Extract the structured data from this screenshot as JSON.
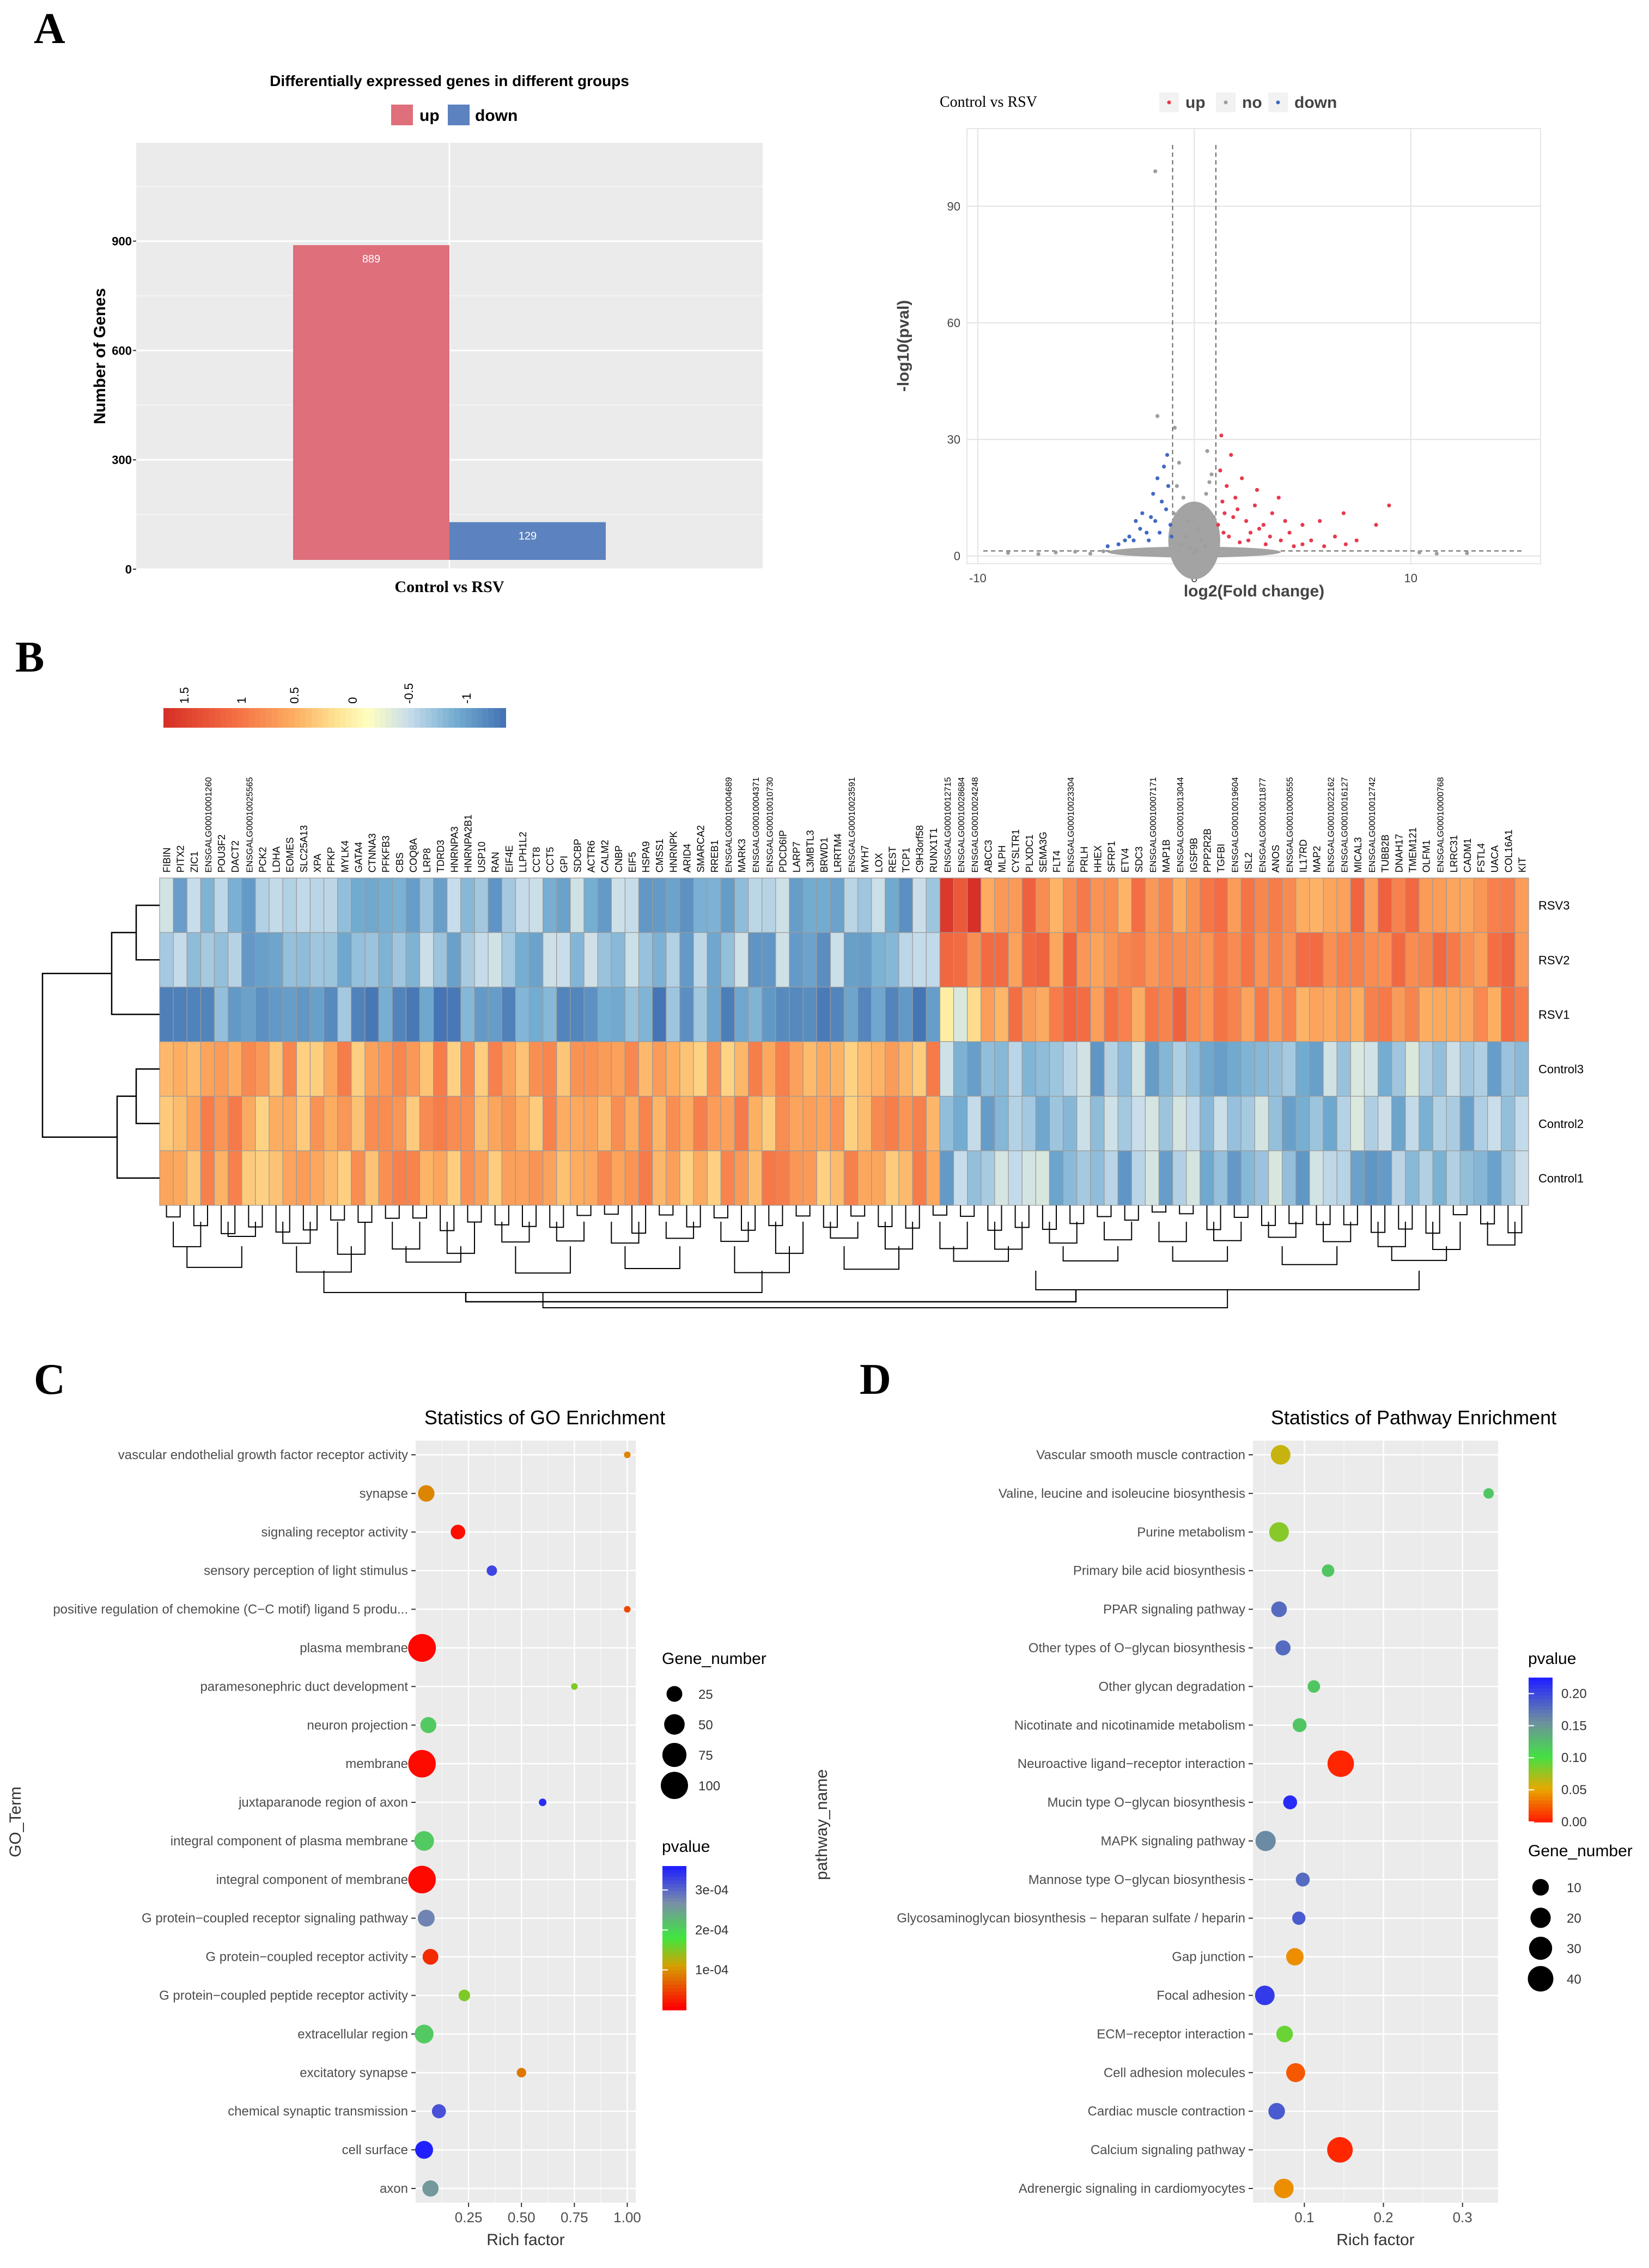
{
  "panels": {
    "a": "A",
    "b": "B",
    "c": "C",
    "d": "D"
  },
  "chart_data": [
    {
      "type": "bar",
      "panel": "A-left",
      "title": "Differentially expressed genes in different groups",
      "legend": [
        {
          "label": "up",
          "color": "#DF6F7B"
        },
        {
          "label": "down",
          "color": "#5C82BF"
        }
      ],
      "categories": [
        "Control vs RSV"
      ],
      "series": [
        {
          "name": "up",
          "values": [
            889
          ]
        },
        {
          "name": "down",
          "values": [
            129
          ]
        }
      ],
      "xlabel": "Control vs RSV",
      "ylabel": "Number of Genes",
      "yticks": [
        0,
        300,
        600,
        900
      ],
      "ylim": [
        0,
        1170
      ]
    },
    {
      "type": "scatter",
      "panel": "A-right",
      "title": "Control vs RSV",
      "legend": [
        {
          "label": "up",
          "color": "#E8394D"
        },
        {
          "label": "no",
          "color": "#9E9E9E"
        },
        {
          "label": "down",
          "color": "#4169C3"
        }
      ],
      "xlabel": "log2(Fold change)",
      "ylabel": "-log10(pval)",
      "xticks": [
        -10,
        0,
        10
      ],
      "yticks": [
        0,
        30,
        60,
        90
      ],
      "xlim": [
        -10.5,
        16
      ],
      "ylim": [
        -2,
        110
      ],
      "vlines": [
        -1,
        1
      ],
      "hline": 1.3,
      "points": {
        "up": [
          [
            1.2,
            22
          ],
          [
            1.5,
            18
          ],
          [
            2,
            12
          ],
          [
            2.4,
            9
          ],
          [
            3,
            7
          ],
          [
            3.5,
            5
          ],
          [
            4,
            4
          ],
          [
            5,
            3
          ],
          [
            6,
            2.5
          ],
          [
            7,
            3
          ],
          [
            1.3,
            14
          ],
          [
            1.8,
            10
          ],
          [
            2.6,
            6
          ],
          [
            3.2,
            8
          ],
          [
            4.4,
            6
          ],
          [
            5.4,
            4
          ],
          [
            6.5,
            5
          ],
          [
            7.5,
            4
          ],
          [
            8.4,
            8
          ],
          [
            9,
            13
          ],
          [
            1.1,
            8
          ],
          [
            1.4,
            11
          ],
          [
            1.9,
            15
          ],
          [
            2.2,
            20
          ],
          [
            2.8,
            13
          ],
          [
            3.6,
            11
          ],
          [
            4.2,
            9
          ],
          [
            5,
            8
          ],
          [
            1.6,
            5
          ],
          [
            2.1,
            3.5
          ],
          [
            2.5,
            4
          ],
          [
            3.3,
            3
          ],
          [
            4.6,
            2.5
          ],
          [
            1.25,
            31
          ],
          [
            1.7,
            26
          ],
          [
            3.9,
            15
          ],
          [
            5.8,
            9
          ],
          [
            6.9,
            11
          ],
          [
            2.9,
            17
          ],
          [
            1.35,
            6
          ]
        ],
        "down": [
          [
            -1.2,
            18
          ],
          [
            -1.5,
            14
          ],
          [
            -2,
            10
          ],
          [
            -2.5,
            7
          ],
          [
            -3,
            5
          ],
          [
            -3.5,
            3
          ],
          [
            -4,
            2.5
          ],
          [
            -1.3,
            12
          ],
          [
            -1.8,
            9
          ],
          [
            -2.2,
            6
          ],
          [
            -2.8,
            4
          ],
          [
            -1.1,
            8
          ],
          [
            -1.6,
            6
          ],
          [
            -2.4,
            11
          ],
          [
            -1.4,
            23
          ],
          [
            -1.9,
            16
          ],
          [
            -2.7,
            9
          ],
          [
            -3.2,
            4
          ],
          [
            -1.25,
            26
          ],
          [
            -2.1,
            4
          ],
          [
            -1.7,
            20
          ],
          [
            -1.05,
            5
          ]
        ],
        "no": [
          [
            -1.8,
            99
          ],
          [
            -1.7,
            36
          ],
          [
            -0.9,
            33
          ],
          [
            0.6,
            27
          ],
          [
            -0.7,
            24
          ],
          [
            0.8,
            21
          ],
          [
            -0.5,
            15
          ],
          [
            0.4,
            12
          ],
          [
            -0.3,
            9
          ],
          [
            0.2,
            7
          ],
          [
            -0.8,
            18
          ],
          [
            0.7,
            19
          ],
          [
            -8.6,
            0.8
          ],
          [
            -7.2,
            0.5
          ],
          [
            -6.4,
            0.9
          ],
          [
            -5.5,
            1.1
          ],
          [
            -4.8,
            0.6
          ],
          [
            -4.2,
            1.2
          ],
          [
            12.6,
            0.7
          ],
          [
            11.2,
            0.6
          ],
          [
            10.4,
            0.9
          ],
          [
            -0.4,
            5
          ],
          [
            0.3,
            4
          ],
          [
            -0.6,
            3
          ],
          [
            0.5,
            2.5
          ],
          [
            -0.2,
            2
          ],
          [
            0.1,
            1.5
          ],
          [
            0,
            1
          ],
          [
            0.9,
            10
          ],
          [
            -0.95,
            11
          ],
          [
            0.55,
            16
          ]
        ]
      }
    },
    {
      "type": "heatmap",
      "panel": "B",
      "legend_ticks": [
        "1.5",
        "1",
        "0.5",
        "0",
        "-0.5",
        "-1"
      ],
      "rows": [
        "RSV3",
        "RSV2",
        "RSV1",
        "Control3",
        "Control2",
        "Control1"
      ],
      "columns": [
        "FIBIN",
        "PITX2",
        "ZIC1",
        "ENSGALG00010001260",
        "POU3F2",
        "DACT2",
        "ENSGALG00010025565",
        "PCK2",
        "LDHA",
        "EOMES",
        "SLC25A13",
        "XPA",
        "PFKP",
        "MYLK4",
        "GATA4",
        "CTNNA3",
        "PFKFB3",
        "CBS",
        "COQ8A",
        "LRP8",
        "TDRD3",
        "HNRNPA3",
        "HNRNPA2B1",
        "USP10",
        "RAN",
        "EIF4E",
        "LLPH1L2",
        "CCT8",
        "CCT5",
        "GPI",
        "SDCBP",
        "ACTR6",
        "CALM2",
        "CNBP",
        "EIF5",
        "HSPA9",
        "CMSS1",
        "HNRNPK",
        "ARID4",
        "SMARCA2",
        "RREB1",
        "ENSGALG00010004689",
        "MARK3",
        "ENSGALG00010004371",
        "ENSGALG00010010730",
        "PDCD6IP",
        "LARP7",
        "L3MBTL3",
        "BRWD1",
        "LRRTM4",
        "ENSGALG00010023591",
        "MYH7",
        "LOX",
        "REST",
        "TCP1",
        "C9H3orf58",
        "RUNX1T1",
        "ENSGALG00010012715",
        "ENSGALG00010028684",
        "ENSGALG00010024248",
        "ABCC3",
        "MLPH",
        "CYSLTR1",
        "PLXDC1",
        "SEMA3G",
        "FLT4",
        "ENSGALG00010023304",
        "PRLH",
        "HHEX",
        "SFRP1",
        "ETV4",
        "SDC3",
        "ENSGALG00010007171",
        "MAP1B",
        "ENSGALG00010013044",
        "IGSF9B",
        "PPP2R2B",
        "TGFBI",
        "ENSGALG00010019604",
        "ISL2",
        "ENSGALG00010011877",
        "ANOS",
        "ENSGALG00010000555",
        "IL17RD",
        "MAP2",
        "ENSGALG00010022162",
        "ENSGALG00010016127",
        "MICAL3",
        "ENSGALG00010012742",
        "TUBB2B",
        "DNAH17",
        "TMEM121",
        "OLFM1",
        "ENSGALG00010000768",
        "LRRC31",
        "CADM1",
        "FSTL4",
        "UACA",
        "COL16A1",
        "KIT"
      ]
    },
    {
      "type": "scatter",
      "panel": "C",
      "title": "Statistics of GO Enrichment",
      "xlabel": "Rich factor",
      "ylabel": "GO_Term",
      "xticks": [
        "0.25",
        "0.50",
        "0.75",
        "1.00"
      ],
      "size_legend": {
        "title": "Gene_number",
        "values": [
          "25",
          "50",
          "75",
          "100"
        ]
      },
      "color_legend": {
        "title": "pvalue",
        "ticks": [
          "3e-04",
          "2e-04",
          "1e-04"
        ]
      },
      "terms": [
        {
          "label": "vascular endothelial growth factor receptor activity",
          "x": 1.0,
          "n": 1,
          "p": 9e-05
        },
        {
          "label": "synapse",
          "x": 0.05,
          "n": 28,
          "p": 9e-05
        },
        {
          "label": "signaling receptor activity",
          "x": 0.2,
          "n": 20,
          "p": 1e-05
        },
        {
          "label": "sensory perception of light stimulus",
          "x": 0.36,
          "n": 7,
          "p": 0.00033
        },
        {
          "label": "positive regulation of chemokine (C−C motif) ligand 5 produ...",
          "x": 1.0,
          "n": 1,
          "p": 5e-05
        },
        {
          "label": "plasma membrane",
          "x": 0.03,
          "n": 105,
          "p": 5e-06
        },
        {
          "label": "paramesonephric duct development",
          "x": 0.75,
          "n": 1,
          "p": 0.00015
        },
        {
          "label": "neuron projection",
          "x": 0.06,
          "n": 26,
          "p": 0.00021
        },
        {
          "label": "membrane",
          "x": 0.03,
          "n": 103,
          "p": 8e-06
        },
        {
          "label": "juxtaparanode region of axon",
          "x": 0.6,
          "n": 2,
          "p": 0.00035
        },
        {
          "label": "integral component of plasma membrane",
          "x": 0.04,
          "n": 45,
          "p": 0.00021
        },
        {
          "label": "integral component of membrane",
          "x": 0.03,
          "n": 103,
          "p": 6e-06
        },
        {
          "label": "G protein−coupled receptor signaling pathway",
          "x": 0.05,
          "n": 30,
          "p": 0.00028
        },
        {
          "label": "G protein−coupled receptor activity",
          "x": 0.07,
          "n": 25,
          "p": 3e-05
        },
        {
          "label": "G protein−coupled peptide receptor activity",
          "x": 0.23,
          "n": 10,
          "p": 0.00015
        },
        {
          "label": "extracellular region",
          "x": 0.04,
          "n": 40,
          "p": 0.00021
        },
        {
          "label": "excitatory synapse",
          "x": 0.5,
          "n": 5,
          "p": 8e-05
        },
        {
          "label": "chemical synaptic transmission",
          "x": 0.11,
          "n": 18,
          "p": 0.00032
        },
        {
          "label": "cell surface",
          "x": 0.04,
          "n": 35,
          "p": 0.00036
        },
        {
          "label": "axon",
          "x": 0.07,
          "n": 27,
          "p": 0.00026
        }
      ]
    },
    {
      "type": "scatter",
      "panel": "D",
      "title": "Statistics of Pathway Enrichment",
      "xlabel": "Rich factor",
      "ylabel": "pathway_name",
      "xticks": [
        "0.1",
        "0.2",
        "0.3"
      ],
      "size_legend": {
        "title": "Gene_number",
        "values": [
          "10",
          "20",
          "30",
          "40"
        ]
      },
      "color_legend": {
        "title": "pvalue",
        "ticks": [
          "0.20",
          "0.15",
          "0.10",
          "0.05",
          "0.00"
        ]
      },
      "terms": [
        {
          "label": "Vascular smooth muscle contraction",
          "x": 0.07,
          "n": 18,
          "p": 0.06
        },
        {
          "label": "Valine, leucine and isoleucine biosynthesis",
          "x": 0.333,
          "n": 1,
          "p": 0.12
        },
        {
          "label": "Purine metabolism",
          "x": 0.068,
          "n": 18,
          "p": 0.08
        },
        {
          "label": "Primary bile acid biosynthesis",
          "x": 0.13,
          "n": 3,
          "p": 0.12
        },
        {
          "label": "PPAR signaling pathway",
          "x": 0.068,
          "n": 8,
          "p": 0.18
        },
        {
          "label": "Other types of O−glycan biosynthesis",
          "x": 0.073,
          "n": 7,
          "p": 0.18
        },
        {
          "label": "Other glycan degradation",
          "x": 0.112,
          "n": 3,
          "p": 0.12
        },
        {
          "label": "Nicotinate and nicotinamide metabolism",
          "x": 0.094,
          "n": 5,
          "p": 0.12
        },
        {
          "label": "Neuroactive ligand−receptor interaction",
          "x": 0.146,
          "n": 44,
          "p": 0.001
        },
        {
          "label": "Mucin type O−glycan biosynthesis",
          "x": 0.082,
          "n": 5,
          "p": 0.22
        },
        {
          "label": "MAPK signaling pathway",
          "x": 0.051,
          "n": 20,
          "p": 0.16
        },
        {
          "label": "Mannose type O−glycan biosynthesis",
          "x": 0.098,
          "n": 5,
          "p": 0.18
        },
        {
          "label": "Glycosaminoglycan biosynthesis − heparan sulfate / heparin",
          "x": 0.093,
          "n": 4,
          "p": 0.19
        },
        {
          "label": "Gap junction",
          "x": 0.088,
          "n": 12,
          "p": 0.04
        },
        {
          "label": "Focal adhesion",
          "x": 0.05,
          "n": 18,
          "p": 0.21
        },
        {
          "label": "ECM−receptor interaction",
          "x": 0.075,
          "n": 10,
          "p": 0.09
        },
        {
          "label": "Cell adhesion molecules",
          "x": 0.089,
          "n": 16,
          "p": 0.02
        },
        {
          "label": "Cardiac muscle contraction",
          "x": 0.065,
          "n": 10,
          "p": 0.19
        },
        {
          "label": "Calcium signaling pathway",
          "x": 0.145,
          "n": 40,
          "p": 0.002
        },
        {
          "label": "Adrenergic signaling in cardiomyocytes",
          "x": 0.074,
          "n": 18,
          "p": 0.04
        }
      ]
    }
  ]
}
